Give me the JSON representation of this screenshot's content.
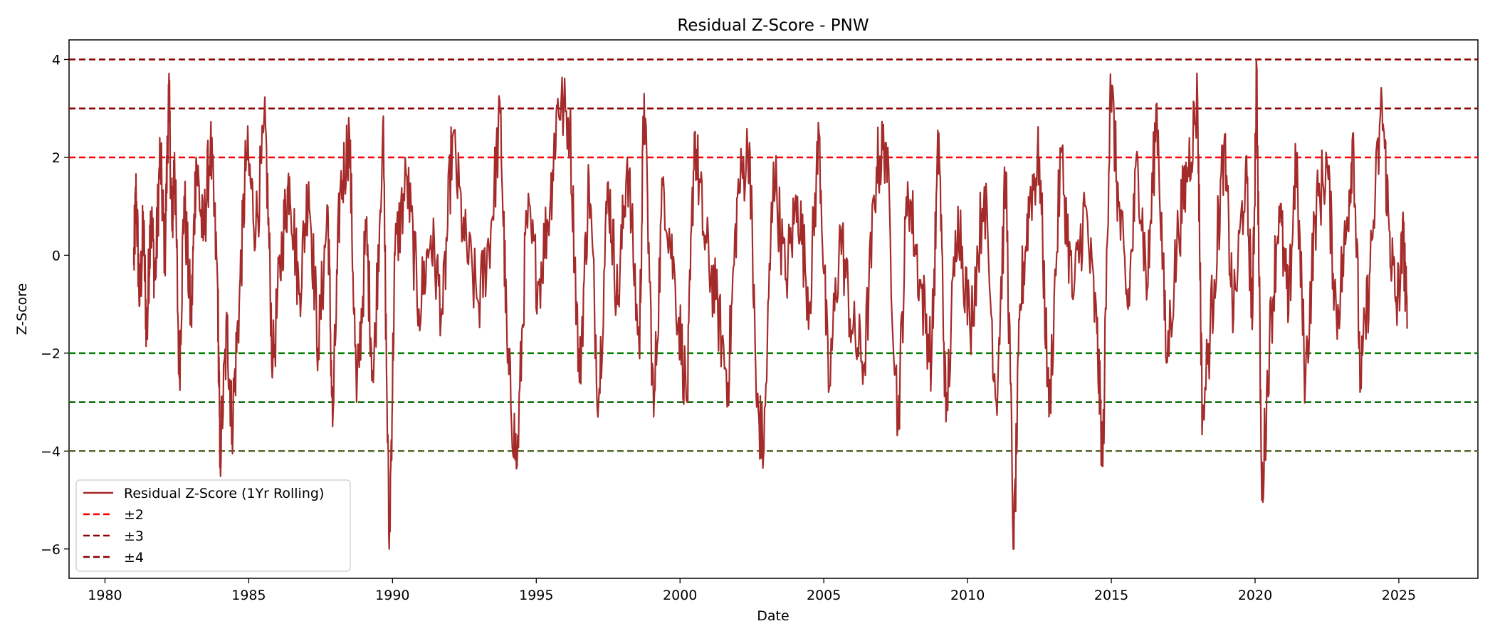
{
  "chart_data": {
    "type": "line",
    "title": "Residual Z-Score - PNW",
    "xlabel": "Date",
    "ylabel": "Z-Score",
    "xlim": [
      "1978-10-01",
      "2027-10-01"
    ],
    "ylim": [
      -6.6,
      4.4
    ],
    "x_ticks": [
      "1980",
      "1985",
      "1990",
      "1995",
      "2000",
      "2005",
      "2010",
      "2015",
      "2020",
      "2025"
    ],
    "y_ticks": [
      4,
      2,
      0,
      -2,
      -4,
      -6
    ],
    "y_tick_labels": [
      "4",
      "2",
      "0",
      "−2",
      "−4",
      "−6"
    ],
    "grid": false,
    "legend": {
      "position": "lower-left",
      "entries": [
        "Residual Z-Score (1Yr Rolling)",
        "±2",
        "±3",
        "±4"
      ]
    },
    "threshold_lines": [
      {
        "y": 4,
        "color": "#8b0000",
        "legend": "±4"
      },
      {
        "y": 3,
        "color": "#8b0000",
        "legend": "±3"
      },
      {
        "y": 2,
        "color": "#ff0000",
        "legend": "±2"
      },
      {
        "y": -2,
        "color": "#008000"
      },
      {
        "y": -3,
        "color": "#006400"
      },
      {
        "y": -4,
        "color": "#556b2f"
      }
    ],
    "series": [
      {
        "name": "Residual Z-Score (1Yr Rolling)",
        "color": "#a52a2a",
        "points": [
          [
            "1981-01-01",
            -0.2
          ],
          [
            "1981-02-01",
            1.3
          ],
          [
            "1981-03-15",
            -1.0
          ],
          [
            "1981-05-01",
            0.6
          ],
          [
            "1981-06-15",
            -1.7
          ],
          [
            "1981-08-01",
            0.9
          ],
          [
            "1981-10-01",
            -0.5
          ],
          [
            "1981-12-01",
            2.1
          ],
          [
            "1982-02-01",
            0.0
          ],
          [
            "1982-03-20",
            3.4
          ],
          [
            "1982-05-01",
            0.5
          ],
          [
            "1982-06-01",
            2.1
          ],
          [
            "1982-08-01",
            -2.5
          ],
          [
            "1982-10-01",
            1.2
          ],
          [
            "1983-01-01",
            -1.4
          ],
          [
            "1983-03-01",
            2.0
          ],
          [
            "1983-06-01",
            0.3
          ],
          [
            "1983-09-01",
            2.3
          ],
          [
            "1983-12-01",
            -0.6
          ],
          [
            "1984-01-01",
            -4.1
          ],
          [
            "1984-04-01",
            -1.5
          ],
          [
            "1984-06-01",
            -3.5
          ],
          [
            "1984-09-01",
            -1.0
          ],
          [
            "1984-12-01",
            2.1
          ],
          [
            "1985-04-01",
            0.6
          ],
          [
            "1985-08-01",
            2.6
          ],
          [
            "1985-11-01",
            -2.3
          ],
          [
            "1986-03-01",
            0.3
          ],
          [
            "1986-06-01",
            1.6
          ],
          [
            "1986-10-01",
            -0.8
          ],
          [
            "1987-02-01",
            1.5
          ],
          [
            "1987-06-01",
            -1.9
          ],
          [
            "1987-10-01",
            1.0
          ],
          [
            "1987-12-01",
            -3.5
          ],
          [
            "1988-03-01",
            1.2
          ],
          [
            "1988-07-01",
            2.5
          ],
          [
            "1988-10-01",
            -3.0
          ],
          [
            "1989-02-01",
            0.5
          ],
          [
            "1989-05-01",
            -2.6
          ],
          [
            "1989-09-01",
            2.7
          ],
          [
            "1989-11-20",
            -6.0
          ],
          [
            "1990-02-01",
            0.0
          ],
          [
            "1990-07-01",
            1.6
          ],
          [
            "1990-12-01",
            -1.1
          ],
          [
            "1991-05-01",
            0.4
          ],
          [
            "1991-10-01",
            -1.2
          ],
          [
            "1992-02-01",
            2.4
          ],
          [
            "1992-07-01",
            0.3
          ],
          [
            "1993-01-01",
            -1.0
          ],
          [
            "1993-06-01",
            0.5
          ],
          [
            "1993-10-01",
            2.9
          ],
          [
            "1994-01-01",
            -2.2
          ],
          [
            "1994-05-01",
            -4.3
          ],
          [
            "1994-09-01",
            0.8
          ],
          [
            "1995-02-01",
            -0.6
          ],
          [
            "1995-07-01",
            1.2
          ],
          [
            "1995-10-01",
            3.2
          ],
          [
            "1996-03-01",
            2.7
          ],
          [
            "1996-07-01",
            -2.6
          ],
          [
            "1996-11-01",
            1.6
          ],
          [
            "1997-03-01",
            -3.0
          ],
          [
            "1997-07-01",
            1.5
          ],
          [
            "1997-11-01",
            -1.0
          ],
          [
            "1998-03-01",
            2.0
          ],
          [
            "1998-08-01",
            -2.0
          ],
          [
            "1998-10-01",
            3.3
          ],
          [
            "1999-02-01",
            -3.3
          ],
          [
            "1999-06-01",
            1.6
          ],
          [
            "1999-11-01",
            -0.6
          ],
          [
            "2000-04-01",
            -3.0
          ],
          [
            "2000-07-01",
            2.5
          ],
          [
            "2000-11-01",
            0.4
          ],
          [
            "2001-04-01",
            -0.9
          ],
          [
            "2001-09-01",
            -2.6
          ],
          [
            "2002-01-01",
            1.2
          ],
          [
            "2002-06-01",
            2.3
          ],
          [
            "2002-09-01",
            -3.1
          ],
          [
            "2002-12-01",
            -4.0
          ],
          [
            "2003-04-01",
            1.9
          ],
          [
            "2003-09-01",
            -0.5
          ],
          [
            "2004-02-01",
            1.2
          ],
          [
            "2004-07-01",
            -1.0
          ],
          [
            "2004-11-01",
            2.5
          ],
          [
            "2005-03-01",
            -2.8
          ],
          [
            "2005-08-01",
            0.5
          ],
          [
            "2006-01-01",
            -1.6
          ],
          [
            "2006-06-01",
            -2.2
          ],
          [
            "2006-11-01",
            1.8
          ],
          [
            "2007-03-01",
            2.3
          ],
          [
            "2007-08-01",
            -3.5
          ],
          [
            "2007-12-01",
            1.5
          ],
          [
            "2008-05-01",
            -0.5
          ],
          [
            "2008-10-01",
            -2.1
          ],
          [
            "2009-01-01",
            2.5
          ],
          [
            "2009-04-01",
            -3.4
          ],
          [
            "2009-09-01",
            1.0
          ],
          [
            "2010-02-01",
            -1.5
          ],
          [
            "2010-08-01",
            1.4
          ],
          [
            "2011-01-01",
            -3.0
          ],
          [
            "2011-05-01",
            1.7
          ],
          [
            "2011-08-10",
            -6.0
          ],
          [
            "2011-11-01",
            -1.0
          ],
          [
            "2012-03-01",
            1.2
          ],
          [
            "2012-07-01",
            2.0
          ],
          [
            "2012-11-01",
            -3.3
          ],
          [
            "2013-04-01",
            2.1
          ],
          [
            "2013-09-01",
            -0.9
          ],
          [
            "2014-02-01",
            1.0
          ],
          [
            "2014-07-01",
            -1.6
          ],
          [
            "2014-09-15",
            -4.3
          ],
          [
            "2014-12-20",
            3.7
          ],
          [
            "2015-04-01",
            1.0
          ],
          [
            "2015-08-01",
            -1.1
          ],
          [
            "2015-12-01",
            2.0
          ],
          [
            "2016-04-01",
            -0.7
          ],
          [
            "2016-08-01",
            3.1
          ],
          [
            "2016-12-01",
            -2.2
          ],
          [
            "2017-05-01",
            0.5
          ],
          [
            "2017-09-01",
            1.8
          ],
          [
            "2018-01-01",
            3.2
          ],
          [
            "2018-03-01",
            -3.4
          ],
          [
            "2018-08-01",
            -0.5
          ],
          [
            "2018-12-01",
            2.2
          ],
          [
            "2019-04-01",
            -1.3
          ],
          [
            "2019-09-01",
            1.7
          ],
          [
            "2019-12-01",
            -1.2
          ],
          [
            "2020-01-20",
            3.9
          ],
          [
            "2020-03-25",
            -5.0
          ],
          [
            "2020-07-01",
            -1.8
          ],
          [
            "2020-11-01",
            1.0
          ],
          [
            "2021-03-01",
            -1.2
          ],
          [
            "2021-06-01",
            2.0
          ],
          [
            "2021-10-01",
            -2.6
          ],
          [
            "2022-02-01",
            0.8
          ],
          [
            "2022-07-01",
            1.9
          ],
          [
            "2022-11-01",
            -1.3
          ],
          [
            "2023-03-01",
            0.4
          ],
          [
            "2023-06-01",
            2.5
          ],
          [
            "2023-09-01",
            -2.7
          ],
          [
            "2024-01-01",
            -0.3
          ],
          [
            "2024-06-01",
            3.1
          ],
          [
            "2024-09-01",
            0.5
          ],
          [
            "2024-12-01",
            -1.1
          ],
          [
            "2025-03-01",
            0.3
          ],
          [
            "2025-04-15",
            -1.5
          ]
        ]
      }
    ]
  }
}
